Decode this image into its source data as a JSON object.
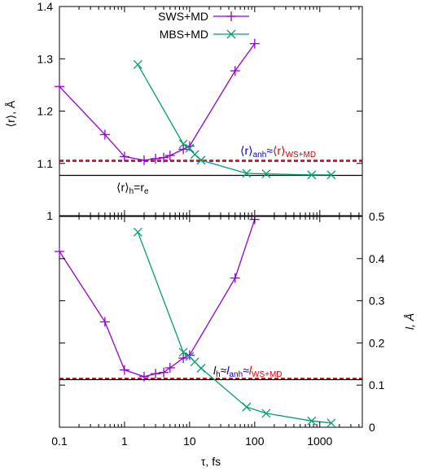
{
  "chart_data": [
    {
      "type": "line",
      "ylabel": "⟨r⟩, Å",
      "xscale": "log",
      "xlim": [
        0.1,
        4500
      ],
      "ylim": [
        1.0,
        1.4
      ],
      "yticks": [
        "1",
        "1.1",
        "1.2",
        "1.3",
        "1.4"
      ],
      "yticks_values": [
        1.0,
        1.1,
        1.2,
        1.3,
        1.4
      ],
      "legend": "top-center",
      "series": [
        {
          "name": "SWS+MD",
          "color": "#9400d3",
          "marker": "plus",
          "x": [
            0.1,
            0.5,
            1,
            2,
            3,
            4,
            5,
            8,
            10,
            50,
            100
          ],
          "y": [
            1.247,
            1.155,
            1.113,
            1.106,
            1.109,
            1.111,
            1.115,
            1.127,
            1.133,
            1.277,
            1.329
          ]
        },
        {
          "name": "MBS+MD",
          "color": "#009e73",
          "marker": "cross",
          "x": [
            1.6,
            8,
            10,
            12,
            15,
            75,
            150,
            750,
            1500
          ],
          "y": [
            1.289,
            1.137,
            1.129,
            1.117,
            1.106,
            1.081,
            1.08,
            1.078,
            1.078
          ]
        }
      ],
      "reference_lines": [
        {
          "y": 1.077,
          "color": "#000000",
          "style": "solid"
        },
        {
          "y": 1.104,
          "color": "#0000cc",
          "style": "dashed"
        },
        {
          "y": 1.106,
          "color": "#dd0000",
          "style": "dashed"
        }
      ],
      "annotations": {
        "lower": {
          "main": "⟨r⟩",
          "sub1": "h",
          "eq": "=r",
          "sub2": "e"
        },
        "upper": {
          "blue_main": "⟨r⟩",
          "blue_sub": "anh",
          "approx": "≈",
          "red_main": "⟨r⟩",
          "red_sub": "WS+MD"
        }
      }
    },
    {
      "type": "line",
      "xlabel": "τ, fs",
      "ylabel": "l, Å",
      "xscale": "log",
      "xlim": [
        0.1,
        4500
      ],
      "xticks": [
        "0.1",
        "1",
        "10",
        "100",
        "1000"
      ],
      "xticks_values": [
        0.1,
        1,
        10,
        100,
        1000
      ],
      "ylim": [
        0,
        0.5
      ],
      "yticks": [
        "0",
        "0.1",
        "0.2",
        "0.3",
        "0.4",
        "0.5"
      ],
      "yticks_values": [
        0,
        0.1,
        0.2,
        0.3,
        0.4,
        0.5
      ],
      "series": [
        {
          "name": "SWS+MD",
          "color": "#9400d3",
          "marker": "plus",
          "x": [
            0.1,
            0.5,
            1,
            2,
            3,
            4,
            5,
            8,
            10,
            50,
            100
          ],
          "y": [
            0.417,
            0.25,
            0.136,
            0.12,
            0.127,
            0.13,
            0.141,
            0.164,
            0.171,
            0.354,
            0.493
          ]
        },
        {
          "name": "MBS+MD",
          "color": "#009e73",
          "marker": "cross",
          "x": [
            1.6,
            8,
            10,
            12,
            15,
            75,
            150,
            750,
            1500
          ],
          "y": [
            0.463,
            0.178,
            0.168,
            0.155,
            0.14,
            0.048,
            0.033,
            0.015,
            0.01
          ]
        }
      ],
      "reference_lines": [
        {
          "y": 0.113,
          "color": "#000000",
          "style": "solid"
        },
        {
          "y": 0.115,
          "color": "#0000cc",
          "style": "dashed"
        },
        {
          "y": 0.116,
          "color": "#dd0000",
          "style": "dashed"
        }
      ],
      "annotations": {
        "main": {
          "l1": "l",
          "s1": "h",
          "approx1": "≈",
          "l2": "l",
          "s2": "anh",
          "approx2": "≈",
          "l3": "l",
          "s3": "WS+MD"
        }
      }
    }
  ]
}
